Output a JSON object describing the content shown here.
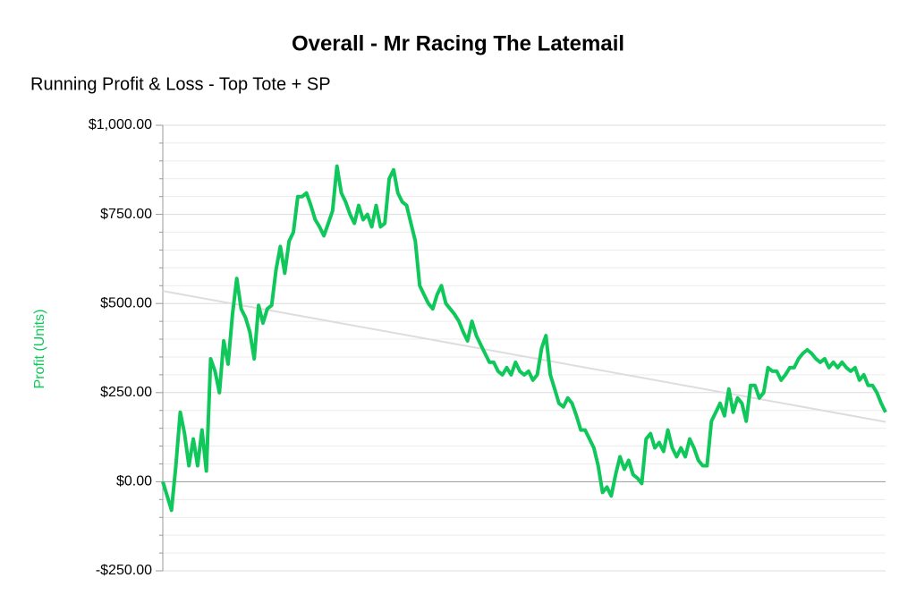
{
  "chart_data": {
    "type": "line",
    "title": "Overall - Mr Racing The Latemail",
    "subtitle": "Running Profit & Loss - Top Tote + SP",
    "y_label": "Profit (Units)",
    "ylim": [
      -250,
      1000
    ],
    "yticks": [
      {
        "value": -250,
        "label": "-$250.00"
      },
      {
        "value": 0,
        "label": "$0.00"
      },
      {
        "value": 250,
        "label": "$250.00"
      },
      {
        "value": 500,
        "label": "$500.00"
      },
      {
        "value": 750,
        "label": "$750.00"
      },
      {
        "value": 1000,
        "label": "$1,000.00"
      }
    ],
    "minor_yticks": [
      -200,
      -150,
      -100,
      -50,
      50,
      100,
      150,
      200,
      300,
      350,
      400,
      450,
      550,
      600,
      650,
      700,
      800,
      850,
      900,
      950
    ],
    "grid": true,
    "zero_line_color": "#999999",
    "trendline": {
      "values": [
        535,
        168
      ],
      "color": "#dddddd"
    },
    "series": [
      {
        "color": "#0fc75a",
        "values": [
          0,
          -40,
          -80,
          45,
          195,
          135,
          45,
          120,
          45,
          145,
          30,
          345,
          310,
          250,
          395,
          330,
          470,
          570,
          485,
          460,
          420,
          345,
          495,
          445,
          485,
          495,
          595,
          660,
          585,
          675,
          700,
          800,
          800,
          810,
          775,
          735,
          715,
          690,
          725,
          760,
          885,
          810,
          785,
          750,
          725,
          775,
          735,
          750,
          715,
          775,
          715,
          725,
          850,
          875,
          810,
          785,
          775,
          725,
          675,
          550,
          525,
          500,
          485,
          525,
          550,
          500,
          485,
          470,
          450,
          420,
          395,
          450,
          410,
          385,
          360,
          335,
          335,
          310,
          300,
          320,
          300,
          335,
          310,
          300,
          310,
          285,
          300,
          375,
          410,
          300,
          260,
          220,
          210,
          235,
          220,
          185,
          145,
          145,
          120,
          95,
          45,
          -30,
          -15,
          -40,
          20,
          70,
          35,
          60,
          20,
          10,
          -5,
          120,
          135,
          95,
          110,
          85,
          145,
          95,
          70,
          95,
          70,
          120,
          95,
          60,
          45,
          45,
          170,
          195,
          220,
          185,
          260,
          195,
          235,
          220,
          170,
          270,
          270,
          235,
          250,
          320,
          310,
          310,
          285,
          300,
          320,
          320,
          345,
          360,
          370,
          360,
          345,
          335,
          345,
          320,
          335,
          320,
          335,
          320,
          310,
          320,
          285,
          300,
          270,
          270,
          250,
          220,
          195
        ]
      }
    ]
  }
}
